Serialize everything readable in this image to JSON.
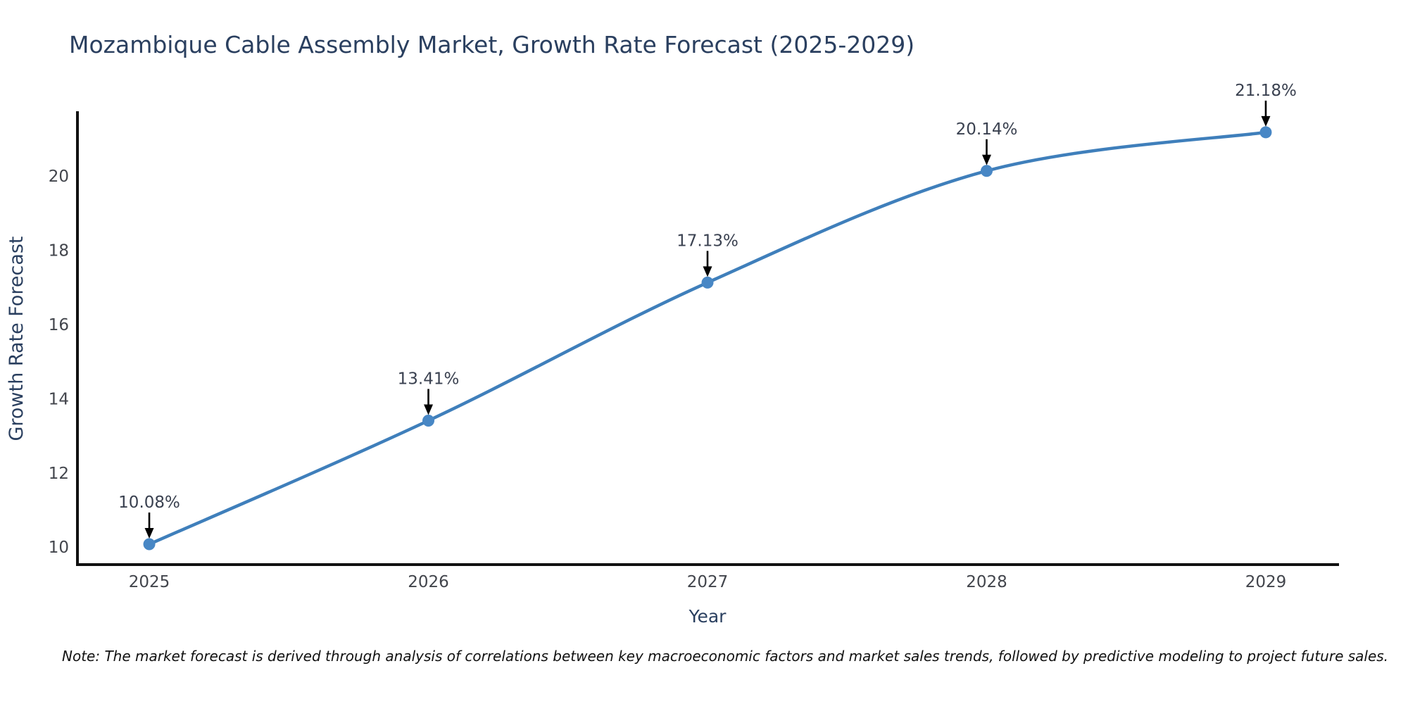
{
  "footer": {
    "note": "Note: The market forecast is derived through analysis of correlations between key macroeconomic factors and market sales trends, followed by predictive modeling to project future sales."
  },
  "chart_data": {
    "type": "line",
    "title": "Mozambique Cable Assembly Market, Growth Rate Forecast (2025-2029)",
    "xlabel": "Year",
    "ylabel": "Growth Rate Forecast",
    "x": [
      "2025",
      "2026",
      "2027",
      "2028",
      "2029"
    ],
    "series": [
      {
        "name": "Growth Rate Forecast",
        "values": [
          10.08,
          13.41,
          17.13,
          20.14,
          21.18
        ]
      }
    ],
    "point_labels": [
      "10.08%",
      "13.41%",
      "17.13%",
      "20.14%",
      "21.18%"
    ],
    "yticks": [
      10,
      12,
      14,
      16,
      18,
      20
    ],
    "ylim": [
      9.53,
      21.71
    ],
    "line_shape": "spline",
    "markers": true,
    "grid": false,
    "legend": "none",
    "annotations_have_arrows": true,
    "colors": {
      "line": "#3f7fbb",
      "marker": "#4887c5",
      "axis_line": "#111111",
      "title_text": "#2a3f5f",
      "axis_title_text": "#2a3f5f",
      "tick_text": "#42454c",
      "annotation_text": "#3a4150",
      "annotation_arrow": "#000000",
      "background": "#ffffff"
    }
  }
}
